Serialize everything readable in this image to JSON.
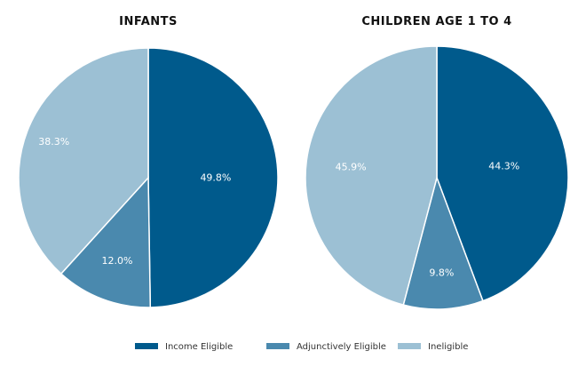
{
  "chart_data": [
    {
      "type": "pie",
      "title": "INFANTS",
      "slices": [
        {
          "label": "Income Eligible",
          "value": 49.8,
          "text": "49.8%"
        },
        {
          "label": "Adjunctively Eligible",
          "value": 12.0,
          "text": "12.0%"
        },
        {
          "label": "Ineligible",
          "value": 38.3,
          "text": "38.3%"
        }
      ]
    },
    {
      "type": "pie",
      "title": "CHILDREN AGE 1 TO 4",
      "slices": [
        {
          "label": "Income Eligible",
          "value": 44.3,
          "text": "44.3%"
        },
        {
          "label": "Adjunctively Eligible",
          "value": 9.8,
          "text": "9.8%"
        },
        {
          "label": "Ineligible",
          "value": 45.9,
          "text": "45.9%"
        }
      ]
    }
  ],
  "legend": {
    "position": "bottom",
    "items": [
      {
        "label": "Income Eligible",
        "color": "#005a8c"
      },
      {
        "label": "Adjunctively Eligible",
        "color": "#4a89ae"
      },
      {
        "label": "Ineligible",
        "color": "#9cc0d4"
      }
    ]
  }
}
